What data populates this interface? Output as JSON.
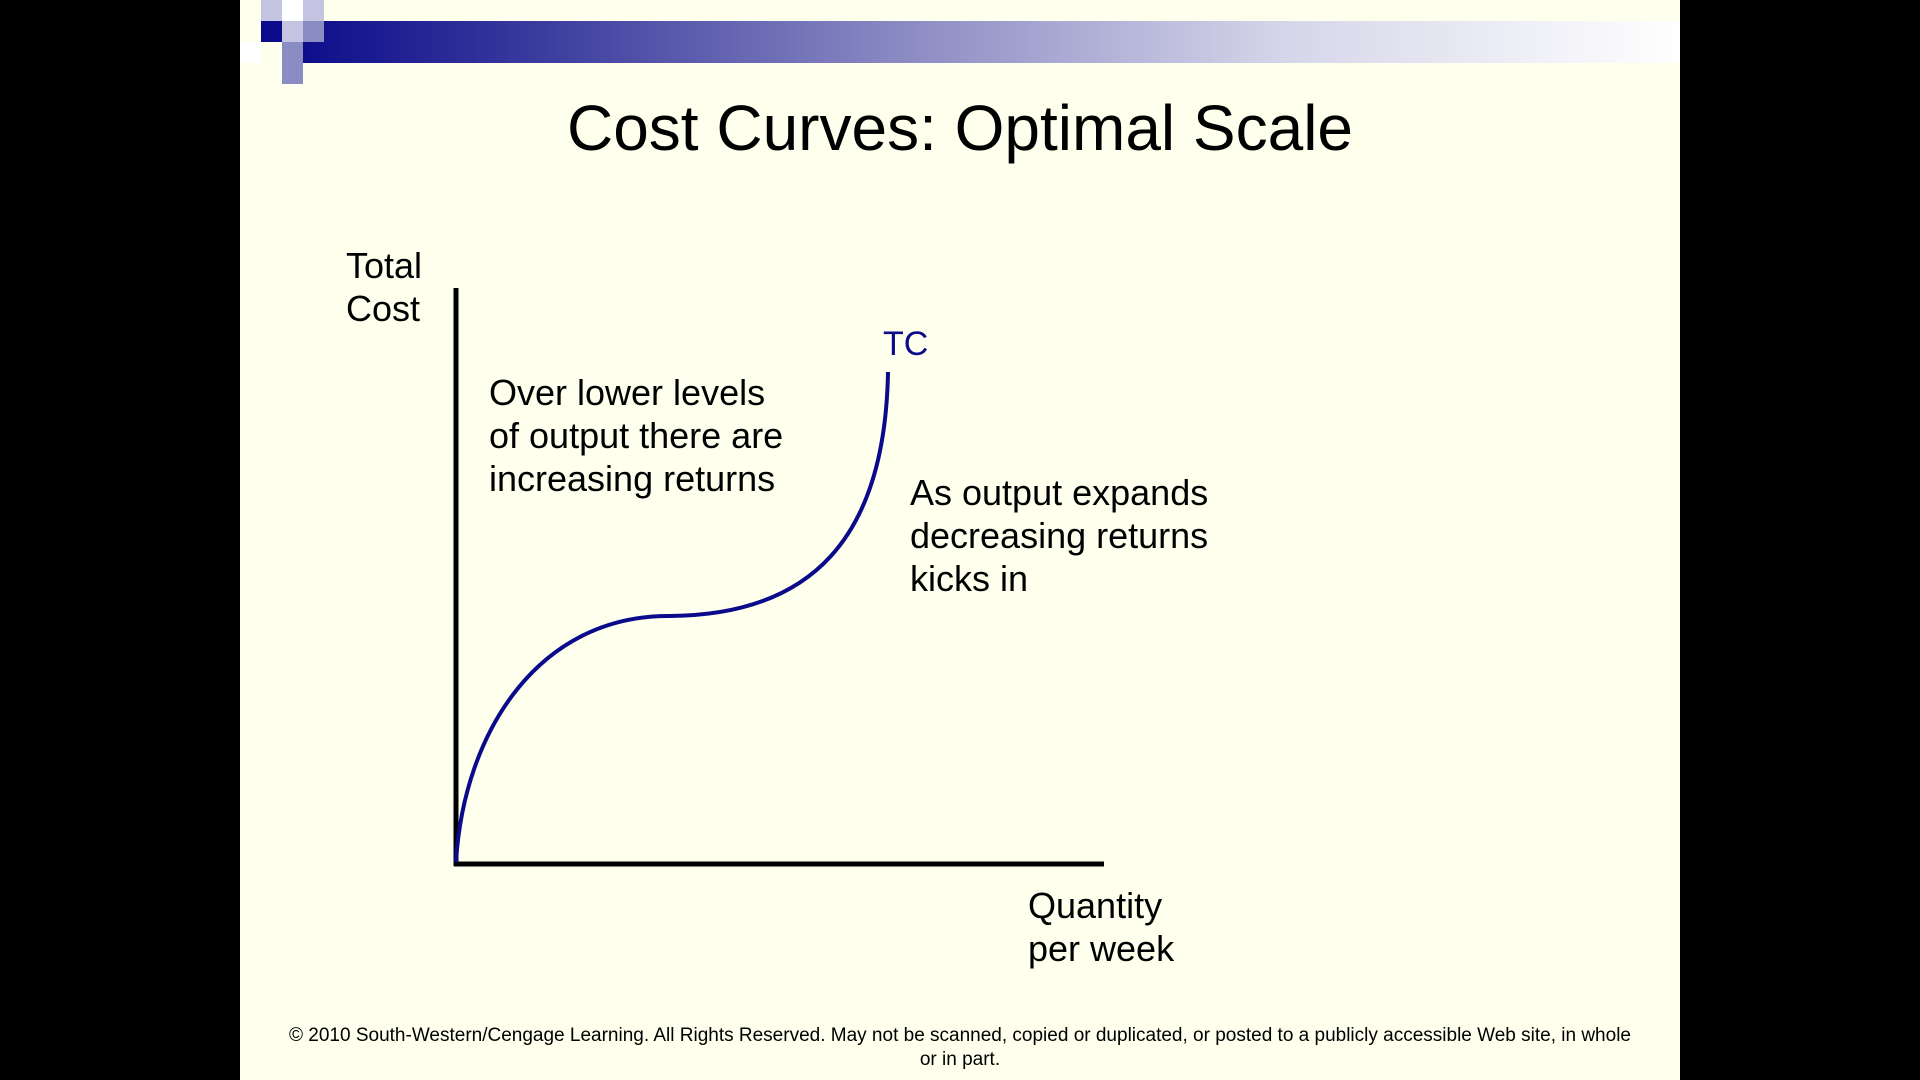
{
  "slide": {
    "title": "Cost Curves: Optimal Scale",
    "copyright_line1": "© 2010 South-Western/Cengage Learning. All Rights Reserved. May not be scanned, copied or duplicated, or posted to a publicly accessible Web site, in whole",
    "copyright_line2": "or in part.",
    "colors": {
      "background": "#FFFFEE",
      "accent": "#0A0A8A",
      "accent_light": "#8C8CC4",
      "text": "#000000"
    }
  },
  "diagram": {
    "y_axis_label": "Total\nCost",
    "x_axis_label": "Quantity\nper week",
    "curve_label": "TC",
    "note_left": "Over lower levels\nof output there are\nincreasing returns",
    "note_right": "As output expands\ndecreasing returns\nkicks in"
  }
}
